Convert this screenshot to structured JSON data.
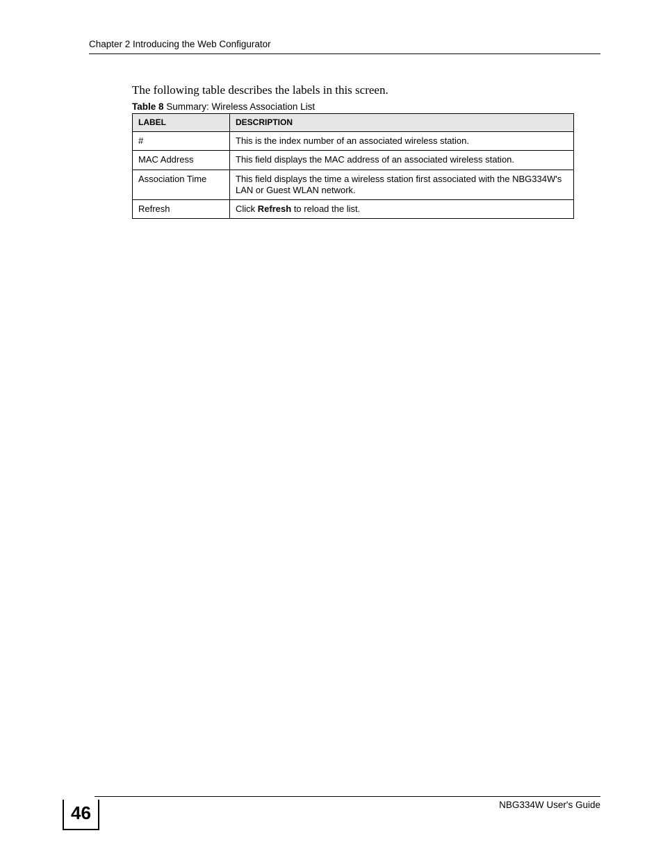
{
  "header": {
    "running_title": "Chapter 2 Introducing the Web Configurator"
  },
  "intro_text": "The following table describes the labels in this screen.",
  "table": {
    "caption_prefix": "Table 8",
    "caption_rest": "   Summary: Wireless Association List",
    "columns": [
      {
        "label": "LABEL"
      },
      {
        "label": "DESCRIPTION"
      }
    ],
    "rows": [
      {
        "label": "#",
        "desc": "This is the index number of an associated wireless station."
      },
      {
        "label": "MAC Address",
        "desc": "This field displays the MAC address of an associated wireless station."
      },
      {
        "label": "Association Time",
        "desc": "This field displays the time a wireless station first associated with the NBG334W's LAN or Guest WLAN network."
      },
      {
        "label": "Refresh",
        "desc_pre": "Click ",
        "desc_bold": "Refresh",
        "desc_post": " to reload the list."
      }
    ]
  },
  "footer": {
    "page_number": "46",
    "guide": "NBG334W User's Guide"
  }
}
